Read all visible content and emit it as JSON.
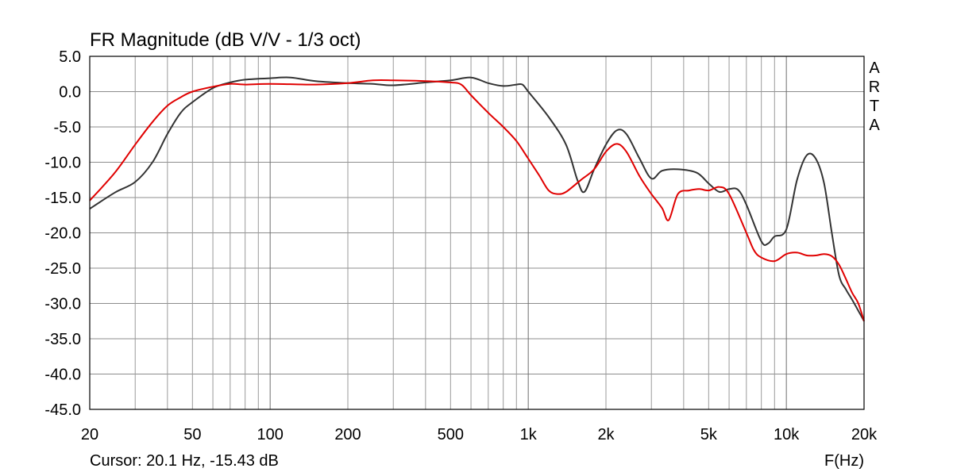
{
  "chart_data": {
    "type": "line",
    "title": "FR Magnitude (dB V/V - 1/3 oct)",
    "xlabel": "F(Hz)",
    "ylabel": "",
    "xscale": "log",
    "xlim": [
      20,
      20000
    ],
    "ylim": [
      -45,
      5
    ],
    "grid": true,
    "watermark": [
      "A",
      "R",
      "T",
      "A"
    ],
    "cursor_text": "Cursor: 20.1 Hz, -15.43 dB",
    "x_ticks": [
      {
        "value": 20,
        "label": "20"
      },
      {
        "value": 50,
        "label": "50"
      },
      {
        "value": 100,
        "label": "100"
      },
      {
        "value": 200,
        "label": "200"
      },
      {
        "value": 500,
        "label": "500"
      },
      {
        "value": 1000,
        "label": "1k"
      },
      {
        "value": 2000,
        "label": "2k"
      },
      {
        "value": 5000,
        "label": "5k"
      },
      {
        "value": 10000,
        "label": "10k"
      },
      {
        "value": 20000,
        "label": "20k"
      }
    ],
    "y_ticks": [
      {
        "value": 5,
        "label": "5.0"
      },
      {
        "value": 0,
        "label": "0.0"
      },
      {
        "value": -5,
        "label": "-5.0"
      },
      {
        "value": -10,
        "label": "-10.0"
      },
      {
        "value": -15,
        "label": "-15.0"
      },
      {
        "value": -20,
        "label": "-20.0"
      },
      {
        "value": -25,
        "label": "-25.0"
      },
      {
        "value": -30,
        "label": "-30.0"
      },
      {
        "value": -35,
        "label": "-35.0"
      },
      {
        "value": -40,
        "label": "-40.0"
      },
      {
        "value": -45,
        "label": "-45.0"
      }
    ],
    "series": [
      {
        "color": "#333333",
        "points": [
          [
            20,
            -16.6
          ],
          [
            25,
            -14.3
          ],
          [
            30,
            -12.8
          ],
          [
            35,
            -10.0
          ],
          [
            40,
            -6.0
          ],
          [
            45,
            -3.0
          ],
          [
            50,
            -1.5
          ],
          [
            60,
            0.5
          ],
          [
            70,
            1.3
          ],
          [
            80,
            1.7
          ],
          [
            100,
            1.9
          ],
          [
            120,
            2.0
          ],
          [
            150,
            1.5
          ],
          [
            200,
            1.2
          ],
          [
            250,
            1.1
          ],
          [
            300,
            0.9
          ],
          [
            400,
            1.3
          ],
          [
            500,
            1.6
          ],
          [
            600,
            2.0
          ],
          [
            700,
            1.2
          ],
          [
            800,
            0.8
          ],
          [
            900,
            1.0
          ],
          [
            950,
            1.0
          ],
          [
            1000,
            0.0
          ],
          [
            1200,
            -3.6
          ],
          [
            1400,
            -7.5
          ],
          [
            1550,
            -12.5
          ],
          [
            1650,
            -14.2
          ],
          [
            1800,
            -11.0
          ],
          [
            2000,
            -7.5
          ],
          [
            2200,
            -5.5
          ],
          [
            2400,
            -6.0
          ],
          [
            2700,
            -9.5
          ],
          [
            3000,
            -12.3
          ],
          [
            3300,
            -11.2
          ],
          [
            3800,
            -11.0
          ],
          [
            4500,
            -11.5
          ],
          [
            5000,
            -13.0
          ],
          [
            5500,
            -14.2
          ],
          [
            6000,
            -13.8
          ],
          [
            6500,
            -13.9
          ],
          [
            7000,
            -16.0
          ],
          [
            8000,
            -21.2
          ],
          [
            8500,
            -21.5
          ],
          [
            9000,
            -20.5
          ],
          [
            10000,
            -19.5
          ],
          [
            11000,
            -12.5
          ],
          [
            12000,
            -9.0
          ],
          [
            13000,
            -9.5
          ],
          [
            14000,
            -13.0
          ],
          [
            15000,
            -20.0
          ],
          [
            16000,
            -26.0
          ],
          [
            17000,
            -28.0
          ],
          [
            18000,
            -29.5
          ],
          [
            20000,
            -32.5
          ]
        ]
      },
      {
        "color": "#e00000",
        "points": [
          [
            20,
            -15.43
          ],
          [
            25,
            -11.5
          ],
          [
            30,
            -7.5
          ],
          [
            35,
            -4.3
          ],
          [
            40,
            -2.0
          ],
          [
            45,
            -0.8
          ],
          [
            50,
            0.0
          ],
          [
            60,
            0.7
          ],
          [
            70,
            1.1
          ],
          [
            80,
            1.0
          ],
          [
            100,
            1.1
          ],
          [
            150,
            1.0
          ],
          [
            200,
            1.2
          ],
          [
            250,
            1.6
          ],
          [
            300,
            1.6
          ],
          [
            400,
            1.5
          ],
          [
            500,
            1.3
          ],
          [
            550,
            1.0
          ],
          [
            600,
            -0.5
          ],
          [
            700,
            -3.0
          ],
          [
            800,
            -5.0
          ],
          [
            900,
            -7.0
          ],
          [
            1000,
            -9.5
          ],
          [
            1100,
            -11.8
          ],
          [
            1200,
            -14.0
          ],
          [
            1300,
            -14.5
          ],
          [
            1400,
            -14.2
          ],
          [
            1600,
            -12.5
          ],
          [
            1800,
            -11.0
          ],
          [
            2000,
            -8.5
          ],
          [
            2200,
            -7.4
          ],
          [
            2400,
            -8.5
          ],
          [
            2700,
            -12.0
          ],
          [
            3000,
            -14.5
          ],
          [
            3300,
            -16.5
          ],
          [
            3500,
            -18.2
          ],
          [
            3800,
            -14.5
          ],
          [
            4200,
            -14.0
          ],
          [
            4600,
            -13.8
          ],
          [
            5000,
            -14.0
          ],
          [
            5500,
            -13.5
          ],
          [
            6000,
            -14.5
          ],
          [
            7000,
            -20.0
          ],
          [
            7500,
            -22.5
          ],
          [
            8000,
            -23.5
          ],
          [
            9000,
            -24.0
          ],
          [
            10000,
            -23.0
          ],
          [
            11000,
            -22.8
          ],
          [
            12000,
            -23.2
          ],
          [
            13000,
            -23.2
          ],
          [
            14000,
            -23.0
          ],
          [
            15000,
            -23.3
          ],
          [
            16000,
            -24.5
          ],
          [
            17000,
            -26.5
          ],
          [
            18000,
            -28.5
          ],
          [
            19000,
            -30.0
          ],
          [
            20000,
            -32.5
          ]
        ]
      }
    ]
  }
}
